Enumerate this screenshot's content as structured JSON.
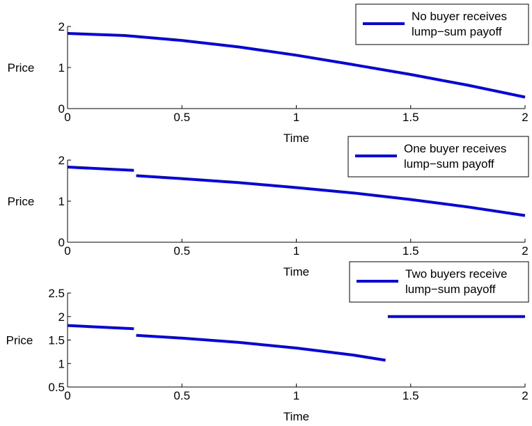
{
  "colors": {
    "series": "#0000ee",
    "axis": "#000000",
    "background": "#ffffff"
  },
  "chart_data": [
    {
      "type": "line",
      "xlabel": "Time",
      "ylabel": "Price",
      "xlim": [
        0,
        2
      ],
      "ylim": [
        0,
        2
      ],
      "xticks": [
        "0",
        "0.5",
        "1",
        "1.5",
        "2"
      ],
      "yticks": [
        "0",
        "1",
        "2"
      ],
      "grid": false,
      "legend_position": "top-right",
      "series": [
        {
          "name": "No buyer receives lump−sum payoff",
          "legend_lines": [
            "No buyer receives",
            "lump−sum payoff"
          ],
          "segments": [
            [
              [
                0,
                1.83
              ],
              [
                0.25,
                1.78
              ],
              [
                0.5,
                1.66
              ],
              [
                0.75,
                1.5
              ],
              [
                1.0,
                1.3
              ],
              [
                1.25,
                1.07
              ],
              [
                1.5,
                0.83
              ],
              [
                1.75,
                0.57
              ],
              [
                2.0,
                0.28
              ]
            ]
          ]
        }
      ]
    },
    {
      "type": "line",
      "xlabel": "Time",
      "ylabel": "Price",
      "xlim": [
        0,
        2
      ],
      "ylim": [
        0,
        2
      ],
      "xticks": [
        "0",
        "0.5",
        "1",
        "1.5",
        "2"
      ],
      "yticks": [
        "0",
        "1",
        "2"
      ],
      "grid": false,
      "legend_position": "top-right",
      "series": [
        {
          "name": "One buyer receives lump−sum payoff",
          "legend_lines": [
            "One buyer receives",
            "lump−sum payoff"
          ],
          "segments": [
            [
              [
                0,
                1.83
              ],
              [
                0.29,
                1.75
              ]
            ],
            [
              [
                0.3,
                1.62
              ],
              [
                0.5,
                1.55
              ],
              [
                0.75,
                1.45
              ],
              [
                1.0,
                1.33
              ],
              [
                1.25,
                1.2
              ],
              [
                1.5,
                1.04
              ],
              [
                1.75,
                0.86
              ],
              [
                2.0,
                0.65
              ]
            ]
          ]
        }
      ]
    },
    {
      "type": "line",
      "xlabel": "Time",
      "ylabel": "Price",
      "xlim": [
        0,
        2
      ],
      "ylim": [
        0.5,
        2.5
      ],
      "xticks": [
        "0",
        "0.5",
        "1",
        "1.5",
        "2"
      ],
      "yticks": [
        "0.5",
        "1",
        "1.5",
        "2",
        "2.5"
      ],
      "grid": false,
      "legend_position": "top-right",
      "series": [
        {
          "name": "Two buyers receive lump−sum payoff",
          "legend_lines": [
            "Two buyers receive",
            "lump−sum payoff"
          ],
          "segments": [
            [
              [
                0,
                1.81
              ],
              [
                0.29,
                1.74
              ]
            ],
            [
              [
                0.3,
                1.6
              ],
              [
                0.5,
                1.54
              ],
              [
                0.75,
                1.45
              ],
              [
                1.0,
                1.33
              ],
              [
                1.25,
                1.18
              ],
              [
                1.39,
                1.07
              ]
            ],
            [
              [
                1.4,
                2.0
              ],
              [
                2.0,
                2.0
              ]
            ]
          ]
        }
      ]
    }
  ]
}
